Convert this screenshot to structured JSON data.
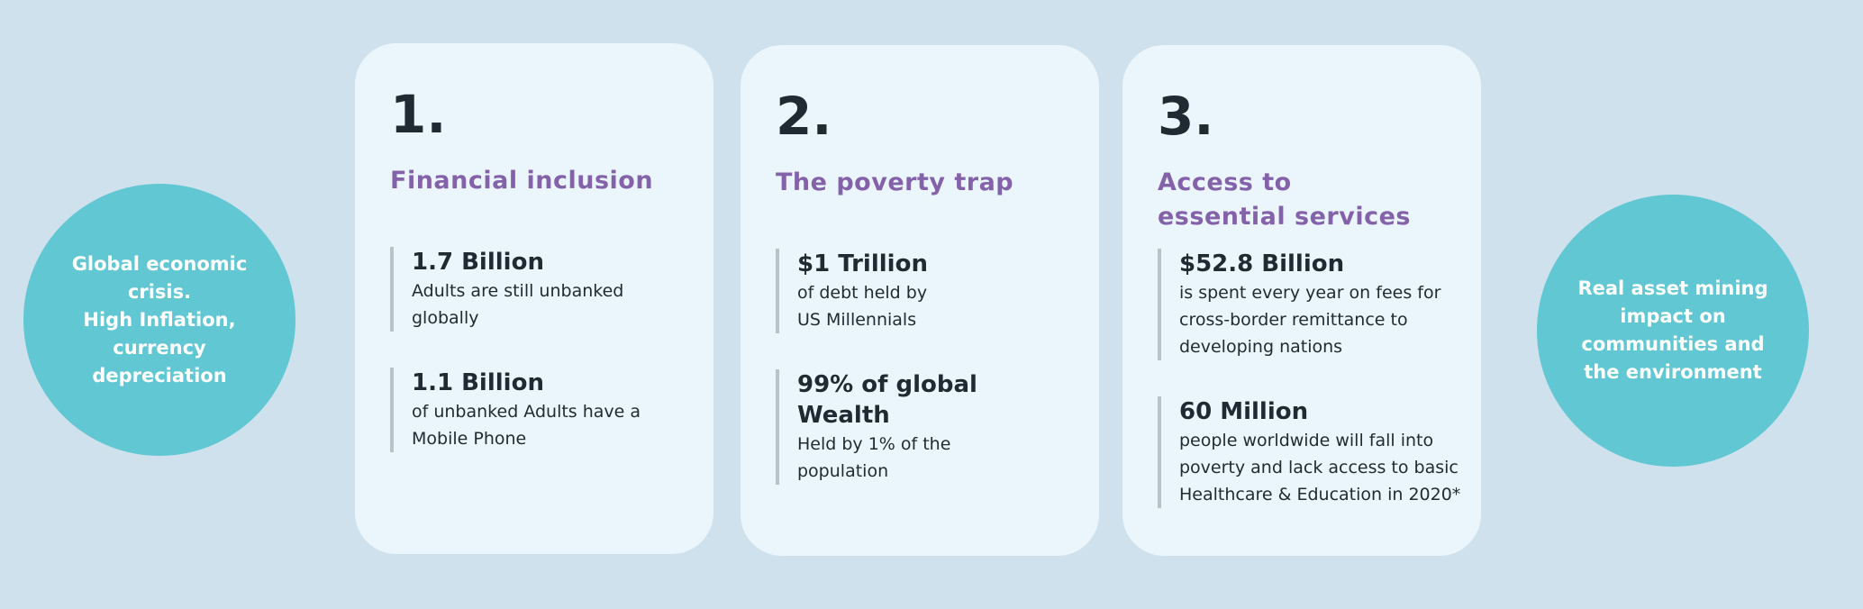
{
  "left_circle": {
    "lines": [
      "Global economic crisis.",
      "High Inflation, currency depreciation"
    ]
  },
  "right_circle": {
    "text": "Real asset  mining impact on communities and the environment"
  },
  "cards": [
    {
      "number": "1.",
      "title": "Financial inclusion",
      "stats": [
        {
          "value": "1.7 Billion",
          "text": "Adults are still unbanked globally"
        },
        {
          "value": "1.1 Billion",
          "text": "of unbanked Adults have a Mobile Phone"
        }
      ]
    },
    {
      "number": "2.",
      "title": "The poverty trap",
      "stats": [
        {
          "value": "$1 Trillion",
          "text": "of debt held by US Millennials"
        },
        {
          "value": "99% of global Wealth",
          "text": "Held by 1% of the population"
        }
      ]
    },
    {
      "number": "3.",
      "title": "Access to essential services",
      "stats": [
        {
          "value": "$52.8 Billion",
          "text": "is spent every year on fees for cross-border remittance to developing nations"
        },
        {
          "value": "60 Million",
          "text": "people worldwide will fall into poverty and lack access to basic Healthcare & Education in 2020*"
        }
      ]
    }
  ],
  "colors": {
    "background": "#cfe1ec",
    "card": "#ebf6fc",
    "circle": "#60c7d3",
    "title": "#8462aa",
    "text": "#1f2a33"
  }
}
